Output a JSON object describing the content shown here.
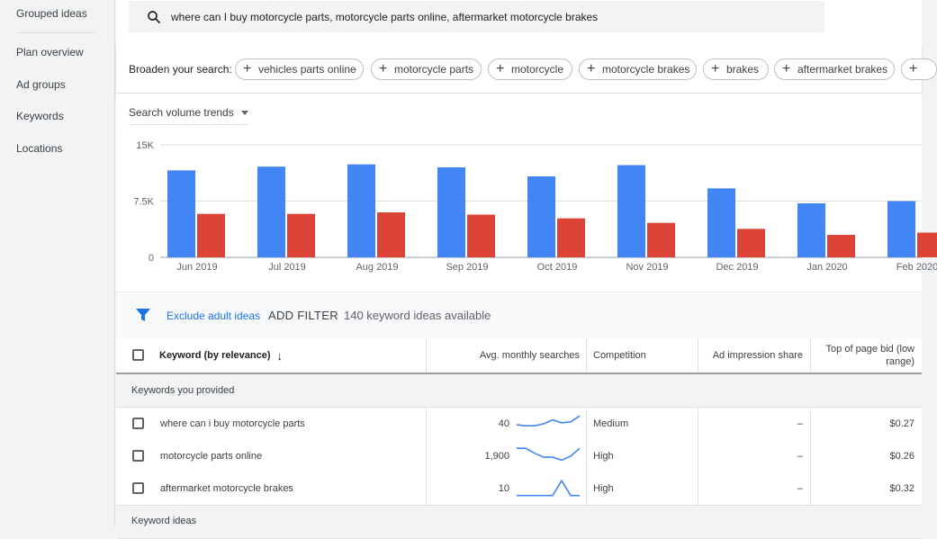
{
  "sidebar": {
    "items": [
      {
        "label": "Grouped ideas"
      },
      {
        "label": "Plan overview"
      },
      {
        "label": "Ad groups"
      },
      {
        "label": "Keywords"
      },
      {
        "label": "Locations"
      }
    ]
  },
  "search": {
    "value": "where can I buy motorcycle parts, motorcycle parts online, aftermarket motorcycle brakes"
  },
  "broaden": {
    "label": "Broaden your search:",
    "chips": [
      "vehicles parts online",
      "motorcycle parts",
      "motorcycle",
      "motorcycle brakes",
      "brakes",
      "aftermarket brakes"
    ]
  },
  "trend": {
    "selector_label": "Search volume trends"
  },
  "chart_data": {
    "type": "bar",
    "categories": [
      "Jun 2019",
      "Jul 2019",
      "Aug 2019",
      "Sep 2019",
      "Oct 2019",
      "Nov 2019",
      "Dec 2019",
      "Jan 2020",
      "Feb 2020"
    ],
    "y_ticks": [
      "0",
      "7.5K",
      "15K"
    ],
    "ylim": [
      0,
      15000
    ],
    "series": [
      {
        "color": "#4285f4",
        "values": [
          11600,
          12100,
          12400,
          12000,
          10800,
          12300,
          9200,
          7200,
          7500
        ]
      },
      {
        "color": "#db4437",
        "values": [
          5800,
          5800,
          6000,
          5700,
          5200,
          4600,
          3800,
          3000,
          3300
        ]
      }
    ],
    "grid": true
  },
  "filters": {
    "exclude_adult": "Exclude adult ideas",
    "add_filter": "ADD FILTER",
    "count": "140 keyword ideas available"
  },
  "table": {
    "headers": {
      "keyword": "Keyword (by relevance)",
      "sort_arrow": "↓",
      "avg_searches": "Avg. monthly searches",
      "competition": "Competition",
      "impression_share": "Ad impression share",
      "bid_low_line1": "Top of page bid (low",
      "bid_low_line2": "range)"
    },
    "section_provided": "Keywords you provided",
    "rows": [
      {
        "keyword": "where can i buy motorcycle parts",
        "searches": "40",
        "competition": "Medium",
        "impression": "–",
        "bid": "$0.27",
        "spark": [
          0.55,
          0.6,
          0.6,
          0.5,
          0.3,
          0.45,
          0.4,
          0.1
        ]
      },
      {
        "keyword": "motorcycle parts online",
        "searches": "1,900",
        "competition": "High",
        "impression": "–",
        "bid": "$0.26",
        "spark": [
          0.1,
          0.1,
          0.35,
          0.55,
          0.55,
          0.7,
          0.5,
          0.1
        ]
      },
      {
        "keyword": "aftermarket motorcycle brakes",
        "searches": "10",
        "competition": "High",
        "impression": "–",
        "bid": "$0.32",
        "spark": [
          0.85,
          0.85,
          0.85,
          0.85,
          0.85,
          0.1,
          0.85,
          0.85
        ]
      }
    ],
    "section_ideas": "Keyword ideas"
  }
}
